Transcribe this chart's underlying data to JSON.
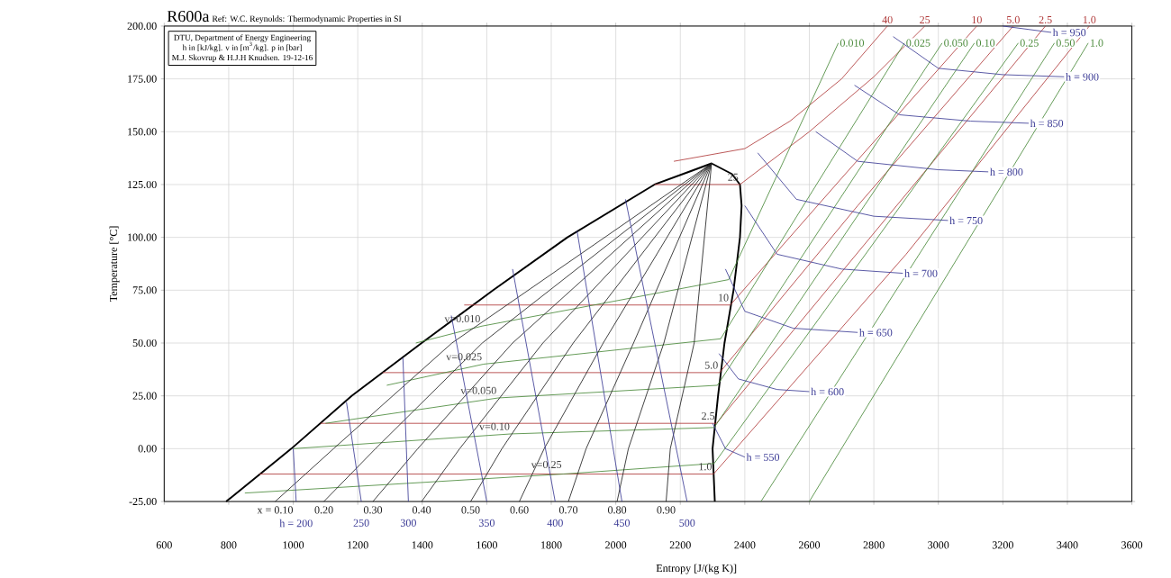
{
  "chart_data": {
    "type": "line",
    "title": "R600a",
    "subtitle": "Ref: W.C. Reynolds: Thermodynamic Properties in SI",
    "xlabel": "Entropy [J/(kg K)]",
    "ylabel": "Temperature [°C]",
    "xlim": [
      600,
      3600
    ],
    "ylim": [
      -25,
      200
    ],
    "xticks": [
      600,
      800,
      1000,
      1200,
      1400,
      1600,
      1800,
      2000,
      2200,
      2400,
      2600,
      2800,
      3000,
      3200,
      3400,
      3600
    ],
    "yticks": [
      {
        "value": -25,
        "label": "-25.00"
      },
      {
        "value": 0,
        "label": "0.00"
      },
      {
        "value": 25,
        "label": "25.00"
      },
      {
        "value": 50,
        "label": "50.00"
      },
      {
        "value": 75,
        "label": "75.00"
      },
      {
        "value": 100,
        "label": "100.00"
      },
      {
        "value": 125,
        "label": "125.00"
      },
      {
        "value": 150,
        "label": "150.00"
      },
      {
        "value": 175,
        "label": "175.00"
      },
      {
        "value": 200,
        "label": "200.00"
      }
    ],
    "grid": true,
    "series": [
      {
        "color": "#000000",
        "x": [
          792,
          994,
          1181,
          1398,
          1620,
          1850,
          2120,
          2297,
          2360,
          2385,
          2390,
          2385,
          2365,
          2337,
          2317,
          2300,
          2307
        ],
        "values": [
          -25,
          0,
          25,
          50,
          75,
          100,
          125,
          135,
          130,
          125,
          115,
          100,
          75,
          50,
          25,
          0,
          -25
        ]
      },
      {
        "name": "40",
        "color": "#b03a3a",
        "x": [
          2180,
          2400,
          2540,
          2700,
          2842
        ],
        "values": [
          136,
          142,
          155,
          175,
          200
        ]
      },
      {
        "name": "25",
        "color": "#b03a3a",
        "x": [
          2120,
          2385,
          2600,
          2800,
          2958
        ],
        "values": [
          125,
          125,
          150,
          176,
          200
        ]
      },
      {
        "name": "10",
        "color": "#b03a3a",
        "x": [
          1530,
          2355,
          2700,
          3119
        ],
        "values": [
          68,
          68,
          128,
          200
        ]
      },
      {
        "name": "5.0",
        "color": "#b03a3a",
        "x": [
          1277,
          2322,
          2750,
          3232
        ],
        "values": [
          36,
          36,
          115,
          200
        ]
      },
      {
        "name": "2.5",
        "color": "#b03a3a",
        "x": [
          1085,
          2312,
          2800,
          3332
        ],
        "values": [
          12,
          12,
          102,
          200
        ]
      },
      {
        "name": "1.0",
        "color": "#b03a3a",
        "x": [
          895,
          2303,
          2900,
          3468
        ],
        "values": [
          -12,
          -12,
          92,
          200
        ]
      },
      {
        "name": "0.010",
        "color": "#4a8a3a",
        "x": [
          1380,
          1585,
          2350,
          2690
        ],
        "values": [
          50,
          58,
          80,
          192
        ]
      },
      {
        "name": "0.025",
        "color": "#4a8a3a",
        "x": [
          1290,
          1590,
          2325,
          2895
        ],
        "values": [
          30,
          40,
          52,
          192
        ]
      },
      {
        "name": "0.050",
        "color": "#4a8a3a",
        "x": [
          1100,
          1635,
          2315,
          3012
        ],
        "values": [
          12,
          24,
          30,
          192
        ]
      },
      {
        "name": "0.10",
        "color": "#4a8a3a",
        "x": [
          1000,
          1676,
          2305,
          3112
        ],
        "values": [
          0,
          7,
          10,
          192
        ]
      },
      {
        "name": "0.25",
        "color": "#4a8a3a",
        "x": [
          850,
          1837,
          2305,
          3248
        ],
        "values": [
          -21,
          -12,
          -7,
          192
        ]
      },
      {
        "name": "0.50",
        "color": "#4a8a3a",
        "x": [
          2450,
          3360
        ],
        "values": [
          -25,
          192
        ]
      },
      {
        "name": "1.0",
        "color": "#4a8a3a",
        "x": [
          2600,
          3465
        ],
        "values": [
          -25,
          192
        ]
      },
      {
        "name": "x = 0.10",
        "color": "#202020",
        "x": [
          2297,
          1492,
          1125,
          944
        ],
        "values": [
          135,
          50,
          0,
          -25
        ]
      },
      {
        "name": "0.20",
        "color": "#202020",
        "x": [
          2297,
          1586,
          1255,
          1095
        ],
        "values": [
          135,
          50,
          0,
          -25
        ]
      },
      {
        "name": "0.30",
        "color": "#202020",
        "x": [
          2297,
          1680,
          1386,
          1247
        ],
        "values": [
          135,
          50,
          0,
          -25
        ]
      },
      {
        "name": "0.40",
        "color": "#202020",
        "x": [
          2297,
          1774,
          1516,
          1398
        ],
        "values": [
          135,
          50,
          0,
          -25
        ]
      },
      {
        "name": "0.50",
        "color": "#202020",
        "x": [
          2297,
          1868,
          1647,
          1550
        ],
        "values": [
          135,
          50,
          0,
          -25
        ]
      },
      {
        "name": "0.60",
        "color": "#202020",
        "x": [
          2297,
          1961,
          1778,
          1701
        ],
        "values": [
          135,
          50,
          0,
          -25
        ]
      },
      {
        "name": "0.70",
        "color": "#202020",
        "x": [
          2297,
          2055,
          1908,
          1853
        ],
        "values": [
          135,
          50,
          0,
          -25
        ]
      },
      {
        "name": "0.80",
        "color": "#202020",
        "x": [
          2297,
          2149,
          2039,
          2004
        ],
        "values": [
          135,
          50,
          0,
          -25
        ]
      },
      {
        "name": "0.90",
        "color": "#202020",
        "x": [
          2297,
          2243,
          2169,
          2156
        ],
        "values": [
          135,
          50,
          0,
          -25
        ]
      },
      {
        "name": "h = 200",
        "color": "#3c3c96",
        "x": [
          1000,
          1009
        ],
        "values": [
          0,
          -25
        ]
      },
      {
        "name": "250",
        "color": "#3c3c96",
        "x": [
          1165,
          1211
        ],
        "values": [
          22,
          -25
        ]
      },
      {
        "name": "300",
        "color": "#3c3c96",
        "x": [
          1340,
          1357
        ],
        "values": [
          43,
          -25
        ]
      },
      {
        "name": "350",
        "color": "#3c3c96",
        "x": [
          1490,
          1600
        ],
        "values": [
          63,
          -25
        ]
      },
      {
        "name": "400",
        "color": "#3c3c96",
        "x": [
          1680,
          1812
        ],
        "values": [
          85,
          -25
        ]
      },
      {
        "name": "450",
        "color": "#3c3c96",
        "x": [
          1880,
          2019
        ],
        "values": [
          103,
          -25
        ]
      },
      {
        "name": "500",
        "color": "#3c3c96",
        "x": [
          2030,
          2221
        ],
        "values": [
          118,
          -25
        ]
      },
      {
        "name": "h = 550",
        "color": "#3c3c96",
        "x": [
          2300,
          2340,
          2400
        ],
        "values": [
          12,
          0,
          -4
        ]
      },
      {
        "name": "h = 600",
        "color": "#3c3c96",
        "x": [
          2320,
          2380,
          2500,
          2600
        ],
        "values": [
          45,
          33,
          28,
          27
        ]
      },
      {
        "name": "h = 650",
        "color": "#3c3c96",
        "x": [
          2340,
          2400,
          2550,
          2750
        ],
        "values": [
          85,
          65,
          57,
          55
        ]
      },
      {
        "name": "h = 700",
        "color": "#3c3c96",
        "x": [
          2400,
          2500,
          2700,
          2890
        ],
        "values": [
          115,
          92,
          85,
          83
        ]
      },
      {
        "name": "h = 750",
        "color": "#3c3c96",
        "x": [
          2440,
          2560,
          2800,
          3030
        ],
        "values": [
          140,
          118,
          110,
          108
        ]
      },
      {
        "name": "h = 800",
        "color": "#3c3c96",
        "x": [
          2620,
          2750,
          3000,
          3155
        ],
        "values": [
          150,
          136,
          132,
          131
        ]
      },
      {
        "name": "h = 850",
        "color": "#3c3c96",
        "x": [
          2740,
          2880,
          3100,
          3280
        ],
        "values": [
          172,
          158,
          155,
          154
        ]
      },
      {
        "name": "h = 900",
        "color": "#3c3c96",
        "x": [
          2860,
          3000,
          3200,
          3390
        ],
        "values": [
          195,
          180,
          177,
          176
        ]
      },
      {
        "name": "h = 950",
        "color": "#3c3c96",
        "x": [
          3200,
          3350
        ],
        "values": [
          200,
          197
        ]
      }
    ],
    "annotations": [
      "DTU, Department of Energy Engineering",
      "h in [kJ/kg]. v in [m$^{3}$/kg]. p in [bar]",
      "M.J. Skovrup & H.J.H Knudsen. 19-12-16",
      {
        "text": "25",
        "x": 2385,
        "y": 125
      },
      {
        "text": "10",
        "x": 2355,
        "y": 68
      },
      {
        "text": "5.0",
        "x": 2322,
        "y": 36
      },
      {
        "text": "2.5",
        "x": 2312,
        "y": 12
      },
      {
        "text": "1.0",
        "x": 2303,
        "y": -12
      },
      {
        "text": "v=0.010",
        "x": 1585,
        "y": 58
      },
      {
        "text": "v=0.025",
        "x": 1590,
        "y": 40
      },
      {
        "text": "v=0.050",
        "x": 1635,
        "y": 24
      },
      {
        "text": "v=0.10",
        "x": 1676,
        "y": 7
      },
      {
        "text": "v=0.25",
        "x": 1837,
        "y": -11
      }
    ]
  }
}
